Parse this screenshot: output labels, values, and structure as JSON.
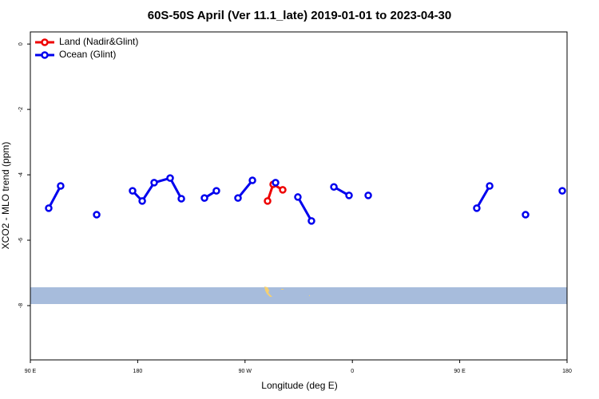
{
  "chart_data": {
    "type": "line",
    "title": "60S-50S April (Ver 11.1_late)   2019-01-01 to 2023-04-30",
    "xlabel": "Longitude (deg E)",
    "ylabel": "XCO2 - MLO trend (ppm)",
    "xlim": [
      90,
      540
    ],
    "ylim": [
      -9.66,
      0.37
    ],
    "xticks": [
      {
        "value": 90,
        "label": "90 E"
      },
      180,
      {
        "value": 270,
        "label": "90 W"
      },
      {
        "value": 360,
        "label": "0"
      },
      {
        "value": 450,
        "label": "90 E"
      },
      {
        "value": 540,
        "label": "180"
      }
    ],
    "yticks": [
      0,
      -2,
      -4,
      -6,
      -8
    ],
    "legend": "top-left",
    "series": [
      {
        "name": "Land (Nadir&Glint)",
        "color": "#ee0000",
        "x": [
          288.9,
          293.6,
          301.6
        ],
        "values": [
          -4.8,
          -4.29,
          -4.46
        ]
      },
      {
        "name": "Ocean (Glint)",
        "color": "#0000ee",
        "x": [
          105.4,
          115.4,
          null,
          145.6,
          null,
          175.7,
          183.8,
          193.8,
          207.2,
          216.6,
          null,
          236.0,
          246.0,
          null,
          264.1,
          276.2,
          null,
          295.6,
          null,
          314.3,
          325.7,
          null,
          344.5,
          357.2,
          null,
          373.3,
          null,
          464.3,
          475.1,
          null,
          505.2,
          null,
          536.0
        ],
        "values": [
          -5.02,
          -4.34,
          null,
          -5.22,
          null,
          -4.49,
          -4.8,
          -4.24,
          -4.1,
          -4.73,
          null,
          -4.71,
          -4.49,
          null,
          -4.71,
          -4.17,
          null,
          -4.24,
          null,
          -4.68,
          -5.41,
          null,
          -4.37,
          -4.63,
          null,
          -4.63,
          null,
          -5.02,
          -4.34,
          null,
          -5.22,
          null,
          -4.49
        ]
      }
    ]
  }
}
